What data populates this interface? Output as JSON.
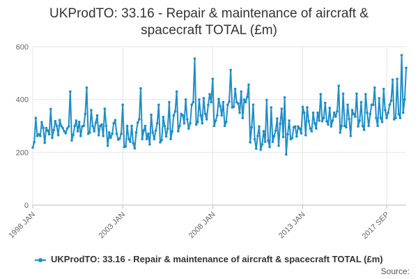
{
  "chart_data": {
    "type": "line",
    "title": "UKProdTO: 33.16 - Repair & maintenance of aircraft & spacecraft TOTAL (£m)",
    "xlabel": "",
    "ylabel": "",
    "ylim": [
      0,
      600
    ],
    "yticks": [
      0,
      200,
      400,
      600
    ],
    "x_start": "1998 JAN",
    "x_end": "2017 SEP",
    "x_tick_labels": [
      {
        "label": "1998 JAN",
        "index": 0
      },
      {
        "label": "2003 JAN",
        "index": 60
      },
      {
        "label": "2008 JAN",
        "index": 120
      },
      {
        "label": "2013 JAN",
        "index": 180
      },
      {
        "label": "2017 SEP",
        "index": 236
      }
    ],
    "grid": true,
    "legend_position": "bottom",
    "series": [
      {
        "name": "UKProdTO: 33.16 - Repair & maintenance of aircraft & spacecraft TOTAL (£m)",
        "color": "#1f8dc8",
        "values": [
          218,
          238,
          330,
          262,
          268,
          262,
          314,
          292,
          236,
          292,
          282,
          268,
          364,
          255,
          284,
          318,
          300,
          265,
          322,
          300,
          292,
          280,
          272,
          290,
          298,
          430,
          245,
          266,
          300,
          320,
          280,
          315,
          262,
          298,
          300,
          345,
          445,
          270,
          275,
          360,
          300,
          280,
          312,
          340,
          265,
          300,
          305,
          262,
          365,
          300,
          225,
          275,
          255,
          270,
          310,
          322,
          270,
          248,
          252,
          270,
          380,
          220,
          222,
          300,
          250,
          240,
          300,
          234,
          215,
          275,
          312,
          325,
          442,
          250,
          282,
          300,
          250,
          270,
          230,
          342,
          275,
          250,
          282,
          310,
          380,
          238,
          246,
          334,
          300,
          260,
          290,
          390,
          250,
          280,
          340,
          355,
          430,
          280,
          300,
          345,
          340,
          310,
          400,
          325,
          290,
          310,
          380,
          390,
          555,
          305,
          315,
          400,
          340,
          310,
          405,
          346,
          325,
          380,
          420,
          390,
          478,
          300,
          320,
          340,
          402,
          375,
          340,
          390,
          300,
          315,
          380,
          392,
          512,
          370,
          372,
          440,
          390,
          385,
          350,
          430,
          330,
          400,
          390,
          410,
          456,
          238,
          295,
          380,
          250,
          214,
          262,
          298,
          210,
          230,
          280,
          240,
          398,
          245,
          220,
          370,
          240,
          262,
          282,
          328,
          225,
          308,
          365,
          258,
          408,
          192,
          268,
          320,
          250,
          254,
          295,
          298,
          260,
          298,
          290,
          272,
          372,
          350,
          265,
          370,
          318,
          290,
          280,
          350,
          310,
          290,
          350,
          320,
          420,
          318,
          330,
          387,
          318,
          305,
          368,
          298,
          320,
          350,
          335,
          355,
          452,
          275,
          300,
          422,
          300,
          295,
          380,
          326,
          262,
          360,
          345,
          335,
          422,
          298,
          320,
          390,
          300,
          285,
          420,
          350,
          300,
          345,
          380,
          380,
          445,
          330,
          300,
          405,
          330,
          315,
          440,
          360,
          330,
          350,
          380,
          395,
          475,
          325,
          330,
          478,
          345,
          330,
          568,
          350,
          400,
          520
        ]
      }
    ]
  },
  "source_label": "Source:"
}
